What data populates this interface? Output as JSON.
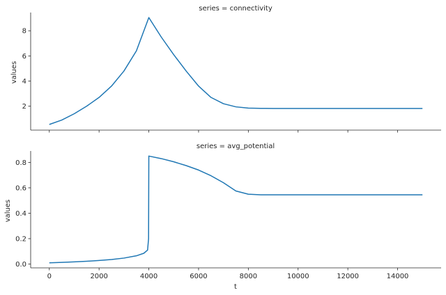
{
  "chart_data": [
    {
      "type": "line",
      "title": "series = connectivity",
      "xlabel": "",
      "ylabel": "values",
      "xlim": [
        -750,
        15750
      ],
      "ylim": [
        0.1,
        9.45
      ],
      "xticks": [
        0,
        2000,
        4000,
        6000,
        8000,
        10000,
        12000,
        14000
      ],
      "xtick_labels": [
        "",
        "",
        "",
        "",
        "",
        "",
        "",
        ""
      ],
      "yticks": [
        2,
        4,
        6,
        8
      ],
      "ytick_labels": [
        "2",
        "4",
        "6",
        "8"
      ],
      "grid": false,
      "color": "#1f77b4",
      "series": [
        {
          "x": [
            0,
            500,
            1000,
            1500,
            2000,
            2500,
            3000,
            3500,
            4000,
            4500,
            5000,
            5500,
            6000,
            6500,
            7000,
            7500,
            8000,
            8500,
            9000,
            10000,
            11000,
            12000,
            13000,
            14000,
            15000
          ],
          "values": [
            0.55,
            0.9,
            1.4,
            2.0,
            2.7,
            3.6,
            4.8,
            6.4,
            9.05,
            7.5,
            6.1,
            4.8,
            3.6,
            2.7,
            2.2,
            1.95,
            1.85,
            1.83,
            1.82,
            1.82,
            1.82,
            1.82,
            1.82,
            1.82,
            1.82
          ]
        }
      ]
    },
    {
      "type": "line",
      "title": "series = avg_potential",
      "xlabel": "t",
      "ylabel": "values",
      "xlim": [
        -750,
        15750
      ],
      "ylim": [
        -0.03,
        0.89
      ],
      "xticks": [
        0,
        2000,
        4000,
        6000,
        8000,
        10000,
        12000,
        14000
      ],
      "xtick_labels": [
        "0",
        "2000",
        "4000",
        "6000",
        "8000",
        "10000",
        "12000",
        "14000"
      ],
      "yticks": [
        0.0,
        0.2,
        0.4,
        0.6,
        0.8
      ],
      "ytick_labels": [
        "0.0",
        "0.2",
        "0.4",
        "0.6",
        "0.8"
      ],
      "grid": false,
      "color": "#1f77b4",
      "series": [
        {
          "x": [
            0,
            500,
            1000,
            1500,
            2000,
            2500,
            3000,
            3500,
            3800,
            3950,
            3990,
            4000,
            4500,
            5000,
            5500,
            6000,
            6500,
            7000,
            7500,
            8000,
            8500,
            9000,
            10000,
            11000,
            12000,
            13000,
            14000,
            15000
          ],
          "values": [
            0.01,
            0.013,
            0.017,
            0.022,
            0.028,
            0.036,
            0.047,
            0.065,
            0.085,
            0.11,
            0.2,
            0.85,
            0.83,
            0.805,
            0.775,
            0.74,
            0.695,
            0.64,
            0.575,
            0.55,
            0.545,
            0.545,
            0.545,
            0.545,
            0.545,
            0.545,
            0.545,
            0.545
          ]
        }
      ]
    }
  ]
}
